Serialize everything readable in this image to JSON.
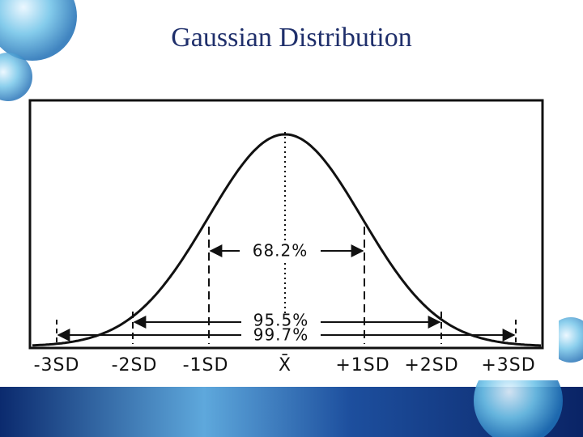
{
  "title": "Gaussian Distribution",
  "diagram": {
    "axis_labels": [
      "-3SD",
      "-2SD",
      "-1SD",
      "X̄",
      "+1SD",
      "+2SD",
      "+3SD"
    ],
    "ranges": [
      {
        "label": "68.2%"
      },
      {
        "label": "95.5%"
      },
      {
        "label": "99.7%"
      }
    ]
  }
}
